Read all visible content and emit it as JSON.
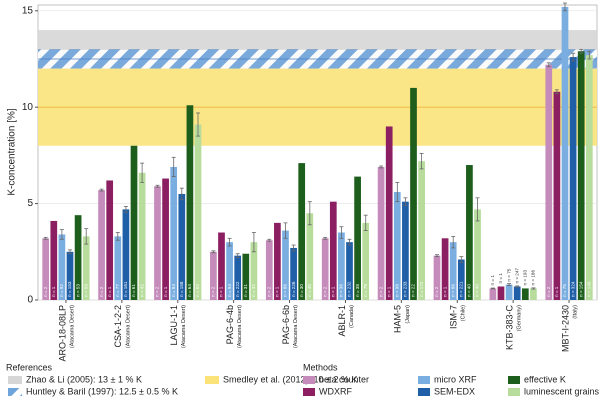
{
  "chart_data": {
    "type": "bar",
    "ylabel": "K-concentration [%]",
    "ylim": [
      0,
      15.3
    ],
    "yticks": [
      0,
      5,
      10,
      15
    ],
    "grid": true,
    "categories": [
      "ARO-18-08LP",
      "CSA-1-2-2",
      "LAGU-1-1",
      "PAG-6-4b",
      "PAG-6-6b",
      "ABLR-1",
      "HAM-5",
      "ISM-7",
      "KTB-383-C",
      "MBT-I-2430"
    ],
    "sublabels": [
      "(Atacama Desert)",
      "(Atacama Desert)",
      "(Atacama Desert)",
      "(Atacama Desert)",
      "(Atacama Desert)",
      "(Canada)",
      "(Japan)",
      "(Chile)",
      "(Germany)",
      "(Italy)"
    ],
    "series": [
      {
        "name": "beta counter",
        "color": "#c48bbb",
        "values": [
          3.2,
          5.7,
          5.9,
          2.5,
          3.1,
          3.2,
          6.9,
          2.3,
          0.6,
          12.2
        ],
        "errors": [
          0.05,
          0.05,
          0.05,
          0.05,
          0.05,
          0.05,
          0.05,
          0.05,
          0.02,
          0.1
        ],
        "n_labels": [
          "n = 2",
          "n = 2",
          "n = 2",
          "n = 2",
          "n = 2",
          "n = 2",
          "n = 2",
          "n = 2",
          "n = 1",
          "n = 2"
        ]
      },
      {
        "name": "WDXRF",
        "color": "#8b1f62",
        "values": [
          4.1,
          6.2,
          6.3,
          3.5,
          4.0,
          5.1,
          9.0,
          3.2,
          0.7,
          10.8
        ],
        "errors": [
          0,
          0,
          0,
          0,
          0,
          0,
          0,
          0,
          0,
          0.1
        ],
        "n_labels": [
          "n = 1",
          "n = 1",
          "n = 1",
          "n = 1",
          "n = 1",
          "n = 1",
          "n = 1",
          "n = 1",
          "n = 1",
          "n = 1"
        ]
      },
      {
        "name": "micro XRF",
        "color": "#7aaee0",
        "values": [
          3.4,
          3.3,
          6.9,
          3.0,
          3.6,
          3.5,
          5.6,
          3.0,
          0.8,
          15.2
        ],
        "errors": [
          0.25,
          0.2,
          0.5,
          0.2,
          0.4,
          0.3,
          0.5,
          0.3,
          0.05,
          0.2
        ],
        "n_labels": [
          "n = 92",
          "n = 77",
          "n = 84",
          "n = 94",
          "n = 86",
          "n = 36",
          "n = 98",
          "n = 86",
          "n = 75",
          "n = 75"
        ]
      },
      {
        "name": "SEM-EDX",
        "color": "#1f5fa8",
        "values": [
          2.5,
          4.7,
          5.5,
          2.3,
          2.7,
          3.0,
          5.1,
          2.1,
          0.7,
          12.6
        ],
        "errors": [
          0.1,
          0.15,
          0.3,
          0.1,
          0.15,
          0.15,
          0.2,
          0.15,
          0.03,
          0.2
        ],
        "n_labels": [
          "n = 153",
          "n = 161",
          "n = 158",
          "n = 222",
          "n = 226",
          "n = 232",
          "n = 233",
          "n = 221",
          "n = 247",
          "n = 324"
        ]
      },
      {
        "name": "effective K",
        "color": "#1d5e1d",
        "values": [
          4.4,
          8.0,
          10.1,
          2.4,
          7.1,
          6.4,
          11.0,
          7.0,
          0.6,
          12.9
        ],
        "errors": [
          0,
          0,
          0,
          0,
          0,
          0,
          0,
          0,
          0,
          0.1
        ],
        "n_labels": [
          "n = 53",
          "n = 61",
          "n = 64",
          "n = 31",
          "n = 30",
          "n = 38",
          "n = 22",
          "n = 40",
          "n = 193",
          "n = 154"
        ]
      },
      {
        "name": "luminescent grains",
        "color": "#b7dc9c",
        "values": [
          3.3,
          6.6,
          9.1,
          3.0,
          4.5,
          4.0,
          7.2,
          4.7,
          0.6,
          12.7
        ],
        "errors": [
          0.4,
          0.5,
          0.6,
          0.5,
          0.6,
          0.4,
          0.4,
          0.6,
          0.03,
          0.2
        ],
        "n_labels": [
          "n = 59",
          "n = 42",
          "n = 62",
          "n = 32",
          "n = 45",
          "n = 79",
          "n = 172",
          "n = 40",
          "n = 186",
          "n = 149"
        ]
      }
    ],
    "references_title": "References",
    "methods_title": "Methods",
    "references": [
      {
        "name": "Zhao & Li (2005): 13 ± 1 % K",
        "value": 13,
        "error": 1,
        "color": "#d6d6d6",
        "hatched": false
      },
      {
        "name": "Huntley & Baril (1997): 12.5 ± 0.5 % K",
        "value": 12.5,
        "error": 0.5,
        "color": "#6fa3dc",
        "hatched": true
      },
      {
        "name": "Smedley et al. (2012): 10 ± 2 % K",
        "value": 10,
        "error": 2,
        "color": "#fbe37a",
        "hatched": false
      }
    ]
  }
}
